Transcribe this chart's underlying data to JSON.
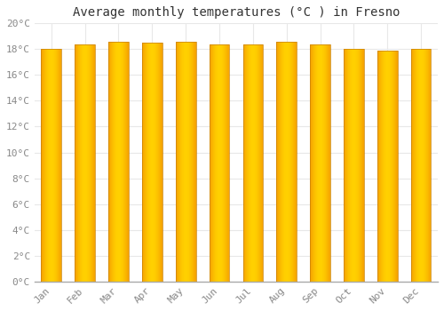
{
  "title": "Average monthly temperatures (°C ) in Fresno",
  "categories": [
    "Jan",
    "Feb",
    "Mar",
    "Apr",
    "May",
    "Jun",
    "Jul",
    "Aug",
    "Sep",
    "Oct",
    "Nov",
    "Dec"
  ],
  "values": [
    18.0,
    18.4,
    18.6,
    18.5,
    18.6,
    18.4,
    18.4,
    18.6,
    18.4,
    18.0,
    17.9,
    18.0
  ],
  "ylim": [
    0,
    20
  ],
  "yticks": [
    0,
    2,
    4,
    6,
    8,
    10,
    12,
    14,
    16,
    18,
    20
  ],
  "ytick_labels": [
    "0°C",
    "2°C",
    "4°C",
    "6°C",
    "8°C",
    "10°C",
    "12°C",
    "14°C",
    "16°C",
    "18°C",
    "20°C"
  ],
  "bar_color_center": "#FFD000",
  "bar_color_edge": "#F5A000",
  "bar_outline_color": "#C88000",
  "background_color": "#FFFFFF",
  "grid_color": "#E8E8E8",
  "title_fontsize": 10,
  "tick_fontsize": 8,
  "tick_color": "#888888",
  "font_family": "monospace",
  "bar_width": 0.6
}
